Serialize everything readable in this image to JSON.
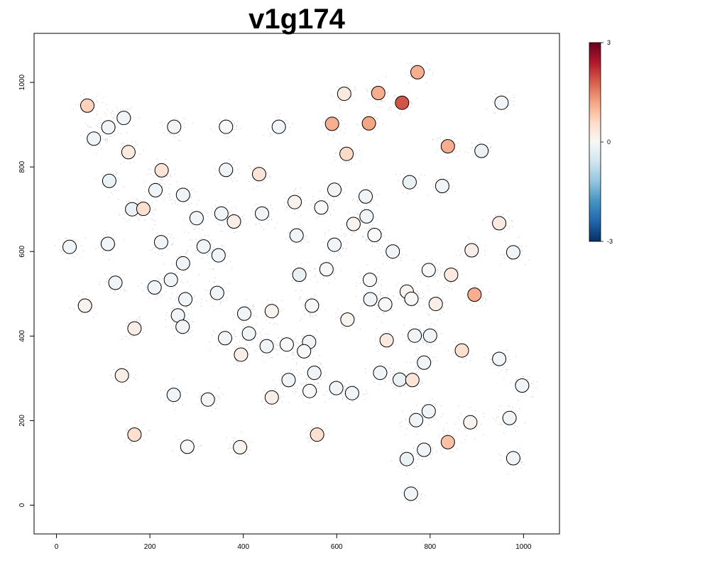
{
  "chart_data": {
    "type": "scatter",
    "title": "v1g174",
    "xlabel": "",
    "ylabel": "",
    "xlim": [
      -48,
      1077
    ],
    "ylim": [
      -68,
      1116
    ],
    "x_ticks": [
      "0",
      "200",
      "400",
      "600",
      "800",
      "1000"
    ],
    "y_ticks": [
      "0",
      "200",
      "400",
      "600",
      "800",
      "1000"
    ],
    "grid": false,
    "background_points_color": "#c8c8c8",
    "colorbar": {
      "ticks": [
        "3",
        "0",
        "-3"
      ],
      "min": -3,
      "max": 3,
      "colors": [
        "#053061",
        "#2166ac",
        "#4393c3",
        "#92c5de",
        "#d1e5f0",
        "#f7f7f7",
        "#fddbc7",
        "#f4a582",
        "#d6604d",
        "#b2182b",
        "#67001f"
      ]
    },
    "points": [
      {
        "x": 66,
        "y": 945,
        "v": 0.7
      },
      {
        "x": 144,
        "y": 916,
        "v": -0.1
      },
      {
        "x": 111,
        "y": 894,
        "v": -0.1
      },
      {
        "x": 80,
        "y": 867,
        "v": -0.1
      },
      {
        "x": 252,
        "y": 895,
        "v": -0.1
      },
      {
        "x": 363,
        "y": 895,
        "v": 0.0
      },
      {
        "x": 476,
        "y": 895,
        "v": -0.1
      },
      {
        "x": 616,
        "y": 973,
        "v": 0.3
      },
      {
        "x": 689,
        "y": 975,
        "v": 1.1
      },
      {
        "x": 773,
        "y": 1024,
        "v": 1.1
      },
      {
        "x": 740,
        "y": 952,
        "v": 1.9
      },
      {
        "x": 953,
        "y": 952,
        "v": -0.1
      },
      {
        "x": 590,
        "y": 902,
        "v": 1.1
      },
      {
        "x": 669,
        "y": 903,
        "v": 1.2
      },
      {
        "x": 154,
        "y": 835,
        "v": 0.3
      },
      {
        "x": 621,
        "y": 831,
        "v": 0.6
      },
      {
        "x": 838,
        "y": 849,
        "v": 1.1
      },
      {
        "x": 910,
        "y": 838,
        "v": -0.2
      },
      {
        "x": 225,
        "y": 792,
        "v": 0.4
      },
      {
        "x": 363,
        "y": 793,
        "v": -0.1
      },
      {
        "x": 434,
        "y": 783,
        "v": 0.4
      },
      {
        "x": 113,
        "y": 767,
        "v": -0.2
      },
      {
        "x": 756,
        "y": 764,
        "v": -0.2
      },
      {
        "x": 826,
        "y": 755,
        "v": -0.1
      },
      {
        "x": 212,
        "y": 745,
        "v": -0.1
      },
      {
        "x": 271,
        "y": 734,
        "v": -0.1
      },
      {
        "x": 595,
        "y": 746,
        "v": -0.1
      },
      {
        "x": 662,
        "y": 730,
        "v": -0.1
      },
      {
        "x": 510,
        "y": 717,
        "v": 0.1
      },
      {
        "x": 567,
        "y": 704,
        "v": 0.0
      },
      {
        "x": 162,
        "y": 700,
        "v": -0.2
      },
      {
        "x": 186,
        "y": 701,
        "v": 0.5
      },
      {
        "x": 353,
        "y": 690,
        "v": -0.1
      },
      {
        "x": 440,
        "y": 690,
        "v": -0.1
      },
      {
        "x": 300,
        "y": 679,
        "v": -0.1
      },
      {
        "x": 380,
        "y": 671,
        "v": 0.2
      },
      {
        "x": 664,
        "y": 683,
        "v": -0.1
      },
      {
        "x": 636,
        "y": 665,
        "v": 0.1
      },
      {
        "x": 948,
        "y": 667,
        "v": 0.3
      },
      {
        "x": 514,
        "y": 638,
        "v": -0.1
      },
      {
        "x": 681,
        "y": 639,
        "v": 0.0
      },
      {
        "x": 28,
        "y": 611,
        "v": -0.1
      },
      {
        "x": 110,
        "y": 618,
        "v": -0.1
      },
      {
        "x": 224,
        "y": 622,
        "v": -0.1
      },
      {
        "x": 315,
        "y": 612,
        "v": -0.1
      },
      {
        "x": 347,
        "y": 591,
        "v": -0.1
      },
      {
        "x": 595,
        "y": 616,
        "v": -0.1
      },
      {
        "x": 720,
        "y": 600,
        "v": -0.1
      },
      {
        "x": 889,
        "y": 603,
        "v": 0.2
      },
      {
        "x": 978,
        "y": 598,
        "v": -0.1
      },
      {
        "x": 271,
        "y": 572,
        "v": -0.1
      },
      {
        "x": 578,
        "y": 558,
        "v": 0.0
      },
      {
        "x": 797,
        "y": 556,
        "v": 0.0
      },
      {
        "x": 520,
        "y": 545,
        "v": -0.2
      },
      {
        "x": 845,
        "y": 545,
        "v": 0.3
      },
      {
        "x": 245,
        "y": 533,
        "v": -0.1
      },
      {
        "x": 671,
        "y": 533,
        "v": 0.0
      },
      {
        "x": 126,
        "y": 526,
        "v": -0.1
      },
      {
        "x": 210,
        "y": 515,
        "v": -0.1
      },
      {
        "x": 344,
        "y": 502,
        "v": -0.1
      },
      {
        "x": 750,
        "y": 505,
        "v": 0.1
      },
      {
        "x": 895,
        "y": 498,
        "v": 1.1
      },
      {
        "x": 276,
        "y": 487,
        "v": -0.1
      },
      {
        "x": 672,
        "y": 487,
        "v": -0.1
      },
      {
        "x": 760,
        "y": 488,
        "v": 0.0
      },
      {
        "x": 61,
        "y": 472,
        "v": 0.1
      },
      {
        "x": 547,
        "y": 472,
        "v": 0.0
      },
      {
        "x": 704,
        "y": 475,
        "v": 0.0
      },
      {
        "x": 812,
        "y": 476,
        "v": 0.2
      },
      {
        "x": 402,
        "y": 453,
        "v": -0.1
      },
      {
        "x": 461,
        "y": 459,
        "v": 0.1
      },
      {
        "x": 260,
        "y": 449,
        "v": -0.1
      },
      {
        "x": 623,
        "y": 439,
        "v": 0.1
      },
      {
        "x": 167,
        "y": 418,
        "v": 0.2
      },
      {
        "x": 270,
        "y": 422,
        "v": -0.1
      },
      {
        "x": 412,
        "y": 406,
        "v": -0.1
      },
      {
        "x": 767,
        "y": 401,
        "v": -0.1
      },
      {
        "x": 800,
        "y": 401,
        "v": -0.1
      },
      {
        "x": 361,
        "y": 395,
        "v": -0.1
      },
      {
        "x": 707,
        "y": 390,
        "v": 0.3
      },
      {
        "x": 541,
        "y": 386,
        "v": -0.1
      },
      {
        "x": 493,
        "y": 380,
        "v": 0.0
      },
      {
        "x": 450,
        "y": 376,
        "v": -0.1
      },
      {
        "x": 868,
        "y": 366,
        "v": 0.5
      },
      {
        "x": 530,
        "y": 364,
        "v": 0.0
      },
      {
        "x": 395,
        "y": 356,
        "v": 0.2
      },
      {
        "x": 948,
        "y": 346,
        "v": -0.1
      },
      {
        "x": 787,
        "y": 337,
        "v": -0.1
      },
      {
        "x": 552,
        "y": 313,
        "v": -0.1
      },
      {
        "x": 693,
        "y": 313,
        "v": -0.1
      },
      {
        "x": 140,
        "y": 307,
        "v": 0.2
      },
      {
        "x": 497,
        "y": 296,
        "v": -0.1
      },
      {
        "x": 735,
        "y": 297,
        "v": -0.2
      },
      {
        "x": 762,
        "y": 296,
        "v": 0.4
      },
      {
        "x": 997,
        "y": 283,
        "v": -0.1
      },
      {
        "x": 599,
        "y": 277,
        "v": -0.1
      },
      {
        "x": 542,
        "y": 270,
        "v": 0.0
      },
      {
        "x": 633,
        "y": 265,
        "v": -0.1
      },
      {
        "x": 251,
        "y": 261,
        "v": -0.1
      },
      {
        "x": 324,
        "y": 250,
        "v": -0.1
      },
      {
        "x": 461,
        "y": 255,
        "v": 0.2
      },
      {
        "x": 797,
        "y": 222,
        "v": -0.1
      },
      {
        "x": 970,
        "y": 206,
        "v": -0.1
      },
      {
        "x": 770,
        "y": 201,
        "v": -0.1
      },
      {
        "x": 886,
        "y": 196,
        "v": 0.1
      },
      {
        "x": 167,
        "y": 167,
        "v": 0.5
      },
      {
        "x": 558,
        "y": 167,
        "v": 0.5
      },
      {
        "x": 838,
        "y": 149,
        "v": 0.9
      },
      {
        "x": 280,
        "y": 138,
        "v": 0.0
      },
      {
        "x": 393,
        "y": 137,
        "v": 0.1
      },
      {
        "x": 787,
        "y": 131,
        "v": -0.1
      },
      {
        "x": 750,
        "y": 109,
        "v": -0.2
      },
      {
        "x": 978,
        "y": 111,
        "v": -0.1
      },
      {
        "x": 759,
        "y": 27,
        "v": -0.1
      }
    ]
  }
}
